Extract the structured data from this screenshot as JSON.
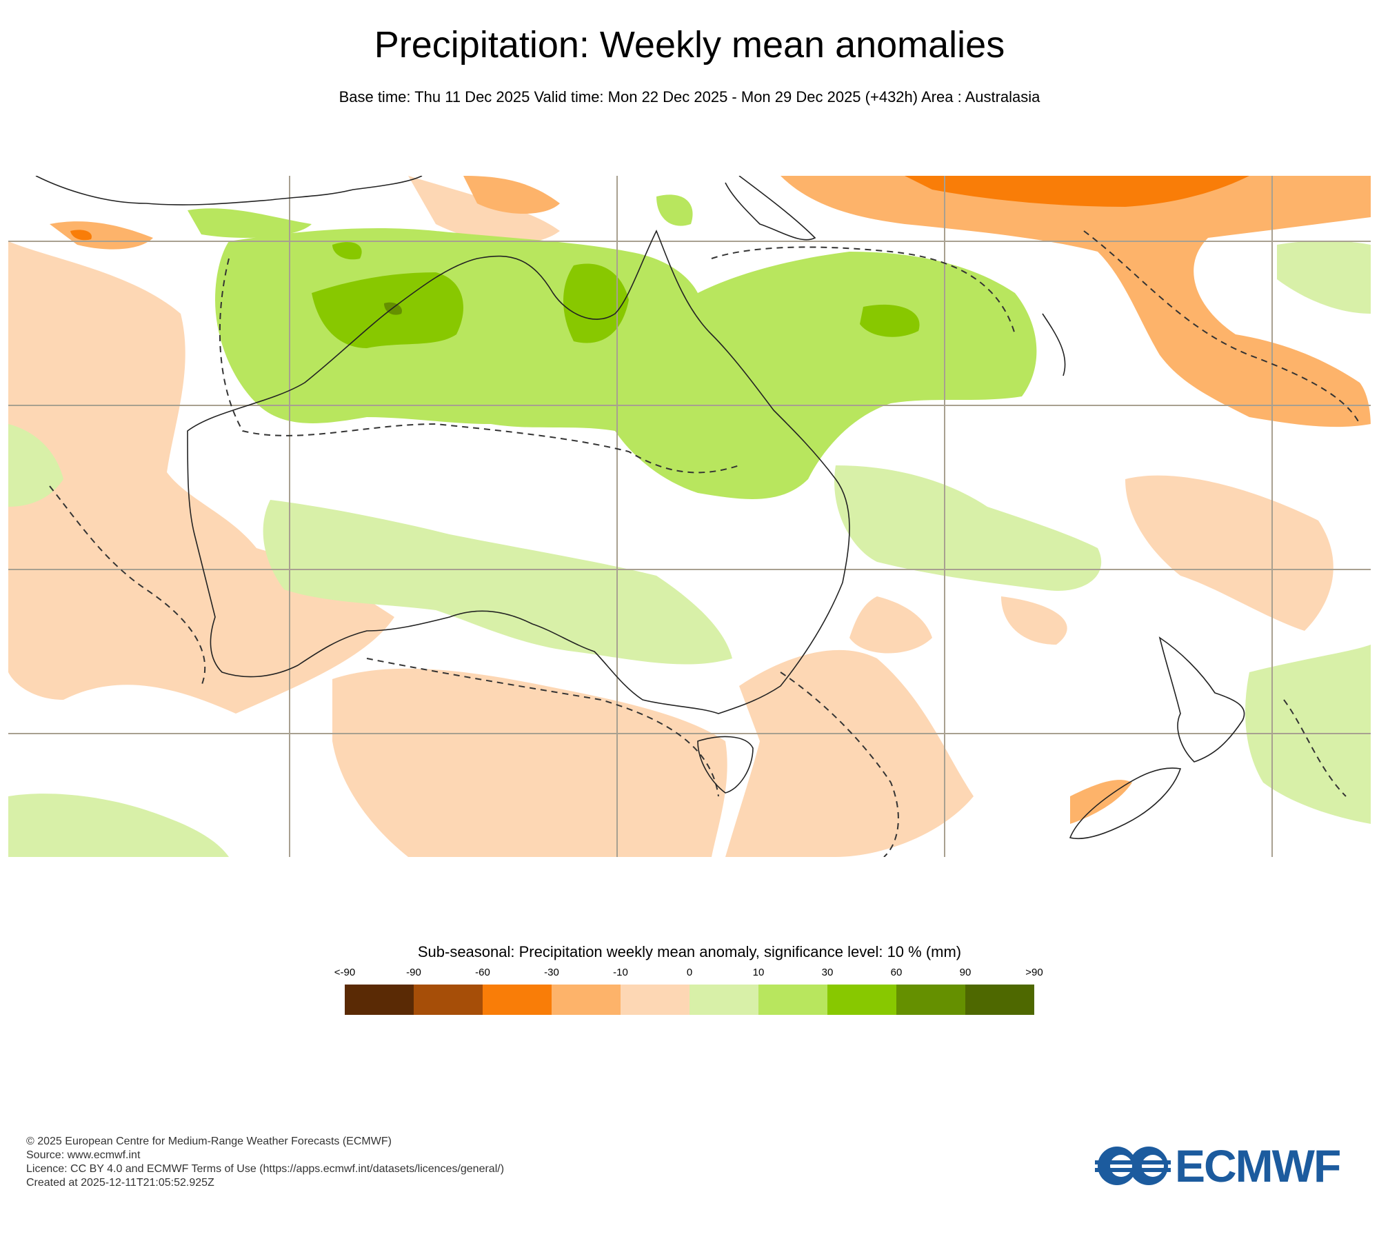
{
  "header": {
    "title": "Precipitation: Weekly mean anomalies",
    "subtitle": "Base time: Thu 11 Dec 2025 Valid time: Mon 22 Dec 2025 - Mon 29 Dec 2025 (+432h) Area : Australasia"
  },
  "legend": {
    "title": "Sub-seasonal: Precipitation weekly mean anomaly, significance level: 10 % (mm)",
    "ticks": [
      "<-90",
      "-90",
      "-60",
      "-30",
      "-10",
      "0",
      "10",
      "30",
      "60",
      "90",
      ">90"
    ],
    "colors": [
      "#5a2a05",
      "#a64e08",
      "#f97d08",
      "#fdb36a",
      "#fdd7b4",
      "#d8f0a8",
      "#b8e65e",
      "#88c800",
      "#659000",
      "#4e6800"
    ]
  },
  "footer": {
    "copyright": "© 2025 European Centre for Medium-Range Weather Forecasts (ECMWF)",
    "source": "Source: www.ecmwf.int",
    "licence": "Licence: CC BY 4.0 and ECMWF Terms of Use (https://apps.ecmwf.int/datasets/licences/general/)",
    "created": "Created at 2025-12-11T21:05:52.925Z"
  },
  "logo": {
    "text": "ECMWF",
    "color": "#1c5b9e"
  }
}
